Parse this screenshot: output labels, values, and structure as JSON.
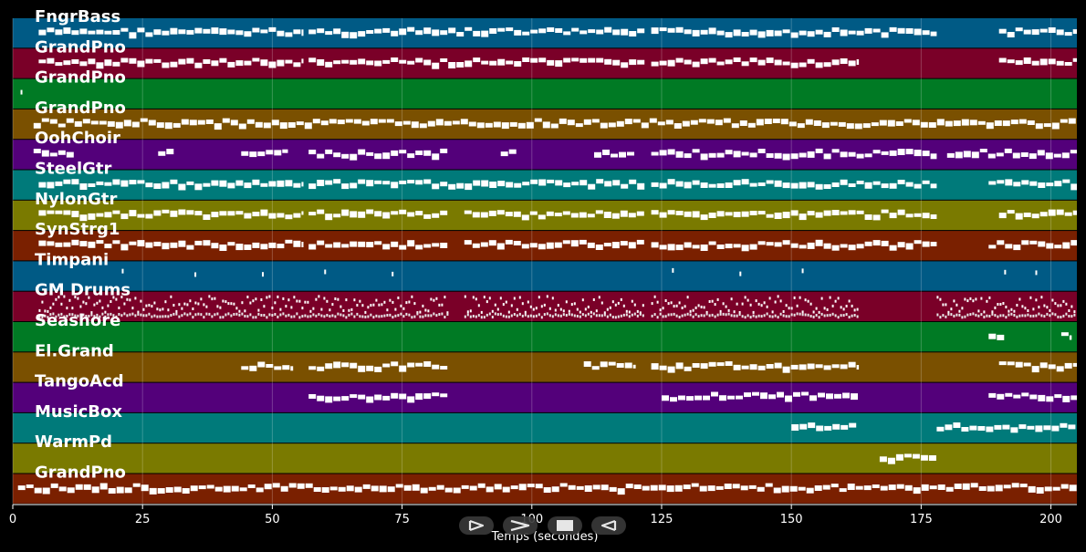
{
  "colors": {
    "background": "#000000",
    "note": "#ffffff",
    "track_palette": [
      "#005a85",
      "#7a0028",
      "#007a24",
      "#7a5000",
      "#53007a",
      "#007a7a",
      "#7a7a00",
      "#7a2000"
    ]
  },
  "tracks": [
    {
      "name": "FngrBass"
    },
    {
      "name": "GrandPno"
    },
    {
      "name": "GrandPno"
    },
    {
      "name": "GrandPno"
    },
    {
      "name": "OohChoir"
    },
    {
      "name": "SteelGtr"
    },
    {
      "name": "NylonGtr"
    },
    {
      "name": "SynStrg1"
    },
    {
      "name": "Timpani"
    },
    {
      "name": "GM Drums"
    },
    {
      "name": "Seashore"
    },
    {
      "name": "El.Grand"
    },
    {
      "name": "TangoAcd"
    },
    {
      "name": "MusicBox"
    },
    {
      "name": "WarmPd"
    },
    {
      "name": "GrandPno"
    }
  ],
  "chart_data": {
    "type": "piano-roll",
    "xlabel": "Temps (secondes)",
    "xlim": [
      0,
      205
    ],
    "xticks": [
      0,
      25,
      50,
      75,
      100,
      125,
      150,
      175,
      200
    ],
    "grid": true,
    "activity": [
      {
        "track": "FngrBass",
        "segments": [
          [
            5,
            56
          ],
          [
            57,
            122
          ],
          [
            123,
            178
          ],
          [
            190,
            205
          ]
        ]
      },
      {
        "track": "GrandPno",
        "segments": [
          [
            5,
            56
          ],
          [
            57,
            122
          ],
          [
            123,
            163
          ],
          [
            190,
            205
          ]
        ]
      },
      {
        "track": "GrandPno",
        "segments": [
          [
            1.5,
            2.2
          ]
        ]
      },
      {
        "track": "GrandPno",
        "segments": [
          [
            4,
            205
          ]
        ]
      },
      {
        "track": "OohChoir",
        "segments": [
          [
            4,
            12
          ],
          [
            28,
            31
          ],
          [
            44,
            53
          ],
          [
            57,
            84
          ],
          [
            94,
            97
          ],
          [
            112,
            120
          ],
          [
            123,
            178
          ],
          [
            180,
            205
          ]
        ]
      },
      {
        "track": "SteelGtr",
        "segments": [
          [
            5,
            56
          ],
          [
            57,
            122
          ],
          [
            123,
            178
          ],
          [
            188,
            205
          ]
        ]
      },
      {
        "track": "NylonGtr",
        "segments": [
          [
            5,
            56
          ],
          [
            57,
            84
          ],
          [
            87,
            122
          ],
          [
            123,
            178
          ],
          [
            190,
            205
          ]
        ]
      },
      {
        "track": "SynStrg1",
        "segments": [
          [
            5,
            56
          ],
          [
            57,
            84
          ],
          [
            87,
            122
          ],
          [
            123,
            178
          ],
          [
            188,
            205
          ]
        ]
      },
      {
        "track": "Timpani",
        "segments": [
          [
            21,
            21.5
          ],
          [
            35,
            35.5
          ],
          [
            48,
            48.5
          ],
          [
            60,
            60.5
          ],
          [
            73,
            73.5
          ],
          [
            127,
            127.5
          ],
          [
            140,
            140.5
          ],
          [
            152,
            152.5
          ],
          [
            191,
            191.5
          ],
          [
            197,
            197.5
          ]
        ]
      },
      {
        "track": "GM Drums",
        "segments": [
          [
            5,
            84
          ],
          [
            87,
            122
          ],
          [
            123,
            163
          ],
          [
            178,
            205
          ]
        ]
      },
      {
        "track": "Seashore",
        "segments": [
          [
            188,
            191
          ],
          [
            202,
            204
          ]
        ]
      },
      {
        "track": "El.Grand",
        "segments": [
          [
            44,
            54
          ],
          [
            57,
            84
          ],
          [
            110,
            120
          ],
          [
            123,
            163
          ],
          [
            190,
            205
          ]
        ]
      },
      {
        "track": "TangoAcd",
        "segments": [
          [
            57,
            84
          ],
          [
            125,
            163
          ],
          [
            188,
            205
          ]
        ]
      },
      {
        "track": "MusicBox",
        "segments": [
          [
            150,
            163
          ],
          [
            178,
            205
          ]
        ]
      },
      {
        "track": "WarmPd",
        "segments": [
          [
            167,
            178
          ]
        ]
      },
      {
        "track": "GrandPno",
        "segments": [
          [
            1,
            205
          ]
        ]
      }
    ]
  },
  "controls": [
    {
      "name": "play-button",
      "icon": "play-outline-icon"
    },
    {
      "name": "fast-forward-button",
      "icon": "chevron-right-icon"
    },
    {
      "name": "stop-button",
      "icon": "stop-icon"
    },
    {
      "name": "rewind-button",
      "icon": "rewind-outline-icon"
    }
  ]
}
